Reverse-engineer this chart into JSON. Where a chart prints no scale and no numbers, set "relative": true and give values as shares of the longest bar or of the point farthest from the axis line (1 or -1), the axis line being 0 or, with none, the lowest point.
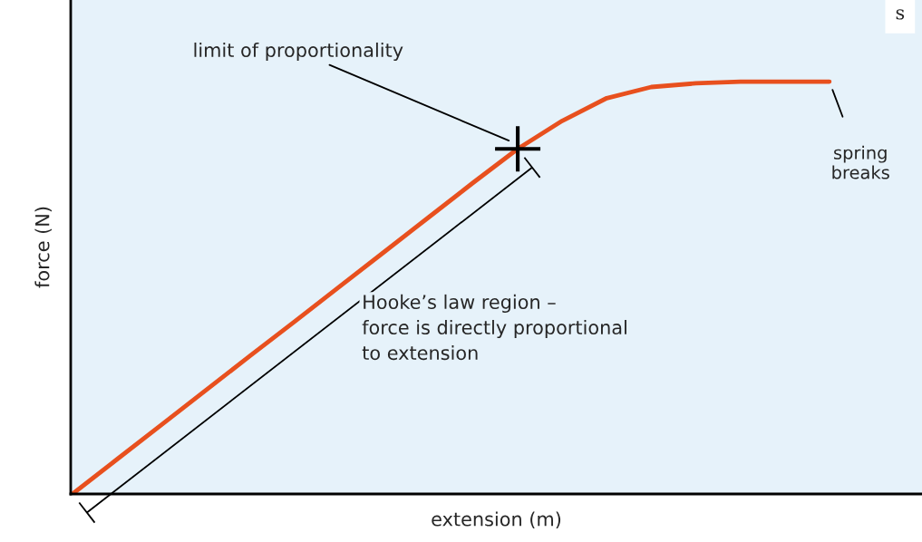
{
  "chart_data": {
    "type": "line",
    "relative": true,
    "xlabel": "extension (m)",
    "ylabel": "force (N)",
    "categories": [
      null,
      null,
      null,
      null,
      null,
      null,
      null,
      null,
      null,
      null,
      null,
      null,
      null,
      null,
      null,
      null,
      null,
      null
    ],
    "series": [
      {
        "color": "#e8501e",
        "values": [
          0,
          0.084,
          0.168,
          0.252,
          0.336,
          0.419,
          0.503,
          0.587,
          0.671,
          0.755,
          0.837,
          0.905,
          0.96,
          0.987,
          0.996,
          1,
          1,
          1
        ]
      }
    ],
    "annotations": [
      "limit of proportionality",
      "spring\nbreaks",
      "Hooke’s law region –\nforce is directly proportional\nto extension",
      "s"
    ],
    "marker": "none",
    "line_style": "solid"
  }
}
